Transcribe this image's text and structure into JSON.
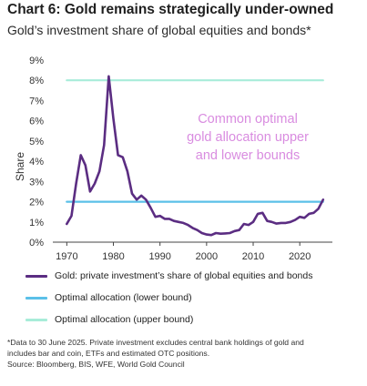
{
  "title": "Chart 6: Gold remains strategically under-owned",
  "subtitle": "Gold’s investment share of global equities and bonds*",
  "annotation": [
    "Common optimal",
    "gold allocation upper",
    "and lower bounds"
  ],
  "colors": {
    "gold_line": "#5b2d82",
    "lower_bound": "#5bc0e8",
    "upper_bound": "#a8ecd9",
    "annotation": "#d98ce0"
  },
  "legend": [
    {
      "label": "Gold: private investment’s share of global equities and bonds",
      "color": "#5b2d82"
    },
    {
      "label": "Optimal allocation (lower bound)",
      "color": "#5bc0e8"
    },
    {
      "label": "Optimal allocation (upper bound)",
      "color": "#a8ecd9"
    }
  ],
  "footnote": [
    "*Data to 30 June 2025. Private investment excludes central bank holdings of gold and",
    "includes bar and coin, ETFs and estimated OTC positions.",
    "Source: Bloomberg, BIS, WFE, World Gold Council"
  ],
  "chart_data": {
    "type": "line",
    "title": "Chart 6: Gold remains strategically under-owned",
    "subtitle": "Gold’s investment share of global equities and bonds*",
    "xlabel": "",
    "ylabel": "Share",
    "xlim": [
      1967,
      2027
    ],
    "ylim": [
      0,
      9
    ],
    "xticks": [
      1970,
      1980,
      1990,
      2000,
      2010,
      2020
    ],
    "yticks": [
      "0%",
      "1%",
      "2%",
      "3%",
      "4%",
      "5%",
      "6%",
      "7%",
      "8%",
      "9%"
    ],
    "grid": false,
    "legend_position": "bottom",
    "series": [
      {
        "name": "Gold: private investment’s share of global equities and bonds",
        "x": [
          1970,
          1971,
          1972,
          1973,
          1974,
          1975,
          1976,
          1977,
          1978,
          1979,
          1980,
          1981,
          1982,
          1983,
          1984,
          1985,
          1986,
          1987,
          1988,
          1989,
          1990,
          1991,
          1992,
          1993,
          1994,
          1995,
          1996,
          1997,
          1998,
          1999,
          2000,
          2001,
          2002,
          2003,
          2004,
          2005,
          2006,
          2007,
          2008,
          2009,
          2010,
          2011,
          2012,
          2013,
          2014,
          2015,
          2016,
          2017,
          2018,
          2019,
          2020,
          2021,
          2022,
          2023,
          2024,
          2025
        ],
        "values": [
          0.9,
          1.3,
          2.9,
          4.3,
          3.8,
          2.5,
          2.9,
          3.5,
          4.8,
          8.2,
          6.1,
          4.3,
          4.2,
          3.5,
          2.4,
          2.1,
          2.3,
          2.1,
          1.7,
          1.25,
          1.3,
          1.15,
          1.15,
          1.05,
          1.0,
          0.95,
          0.85,
          0.7,
          0.6,
          0.45,
          0.38,
          0.35,
          0.45,
          0.42,
          0.43,
          0.45,
          0.55,
          0.6,
          0.9,
          0.85,
          1.0,
          1.4,
          1.45,
          1.05,
          1.0,
          0.92,
          0.95,
          0.95,
          1.0,
          1.1,
          1.25,
          1.2,
          1.4,
          1.45,
          1.65,
          2.1
        ]
      },
      {
        "name": "Optimal allocation (lower bound)",
        "x": [
          1970,
          2025
        ],
        "values": [
          2,
          2
        ]
      },
      {
        "name": "Optimal allocation (upper bound)",
        "x": [
          1970,
          2025
        ],
        "values": [
          8,
          8
        ]
      }
    ]
  }
}
